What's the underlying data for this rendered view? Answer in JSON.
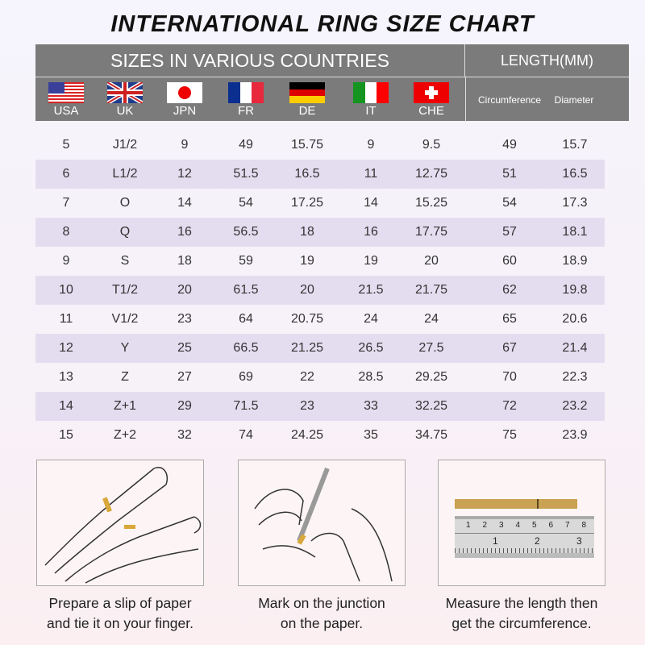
{
  "title": "INTERNATIONAL RING SIZE CHART",
  "header": {
    "countries_label": "SIZES IN VARIOUS COUNTRIES",
    "length_label": "LENGTH(MM)",
    "countries": [
      {
        "code": "USA",
        "flag": "us-flag"
      },
      {
        "code": "UK",
        "flag": "uk-flag"
      },
      {
        "code": "JPN",
        "flag": "japan-flag"
      },
      {
        "code": "FR",
        "flag": "france-flag"
      },
      {
        "code": "DE",
        "flag": "germany-flag"
      },
      {
        "code": "IT",
        "flag": "italy-flag"
      },
      {
        "code": "CHE",
        "flag": "switzerland-flag"
      }
    ],
    "length_columns": [
      "Circumference",
      "Diameter"
    ]
  },
  "rows": [
    [
      "5",
      "J1/2",
      "9",
      "49",
      "15.75",
      "9",
      "9.5",
      "49",
      "15.7"
    ],
    [
      "6",
      "L1/2",
      "12",
      "51.5",
      "16.5",
      "11",
      "12.75",
      "51",
      "16.5"
    ],
    [
      "7",
      "O",
      "14",
      "54",
      "17.25",
      "14",
      "15.25",
      "54",
      "17.3"
    ],
    [
      "8",
      "Q",
      "16",
      "56.5",
      "18",
      "16",
      "17.75",
      "57",
      "18.1"
    ],
    [
      "9",
      "S",
      "18",
      "59",
      "19",
      "19",
      "20",
      "60",
      "18.9"
    ],
    [
      "10",
      "T1/2",
      "20",
      "61.5",
      "20",
      "21.5",
      "21.75",
      "62",
      "19.8"
    ],
    [
      "11",
      "V1/2",
      "23",
      "64",
      "20.75",
      "24",
      "24",
      "65",
      "20.6"
    ],
    [
      "12",
      "Y",
      "25",
      "66.5",
      "21.25",
      "26.5",
      "27.5",
      "67",
      "21.4"
    ],
    [
      "13",
      "Z",
      "27",
      "69",
      "22",
      "28.5",
      "29.25",
      "70",
      "22.3"
    ],
    [
      "14",
      "Z+1",
      "29",
      "71.5",
      "23",
      "33",
      "32.25",
      "72",
      "23.2"
    ],
    [
      "15",
      "Z+2",
      "32",
      "74",
      "24.25",
      "35",
      "34.75",
      "75",
      "23.9"
    ]
  ],
  "steps": [
    {
      "line1": "Prepare a slip of paper",
      "line2": "and tie it on your finger."
    },
    {
      "line1": "Mark on the junction",
      "line2": "on the paper."
    },
    {
      "line1": "Measure the length then",
      "line2": "get the circumference."
    }
  ],
  "ruler": {
    "cm_labels": [
      "1",
      "2",
      "3",
      "4",
      "5",
      "6",
      "7",
      "8"
    ],
    "inch_labels": [
      "1",
      "2",
      "3"
    ]
  },
  "colors": {
    "header_bg": "#7b7b7b",
    "row_band": "#e4ddf0",
    "paper_strip": "#c9a253"
  }
}
